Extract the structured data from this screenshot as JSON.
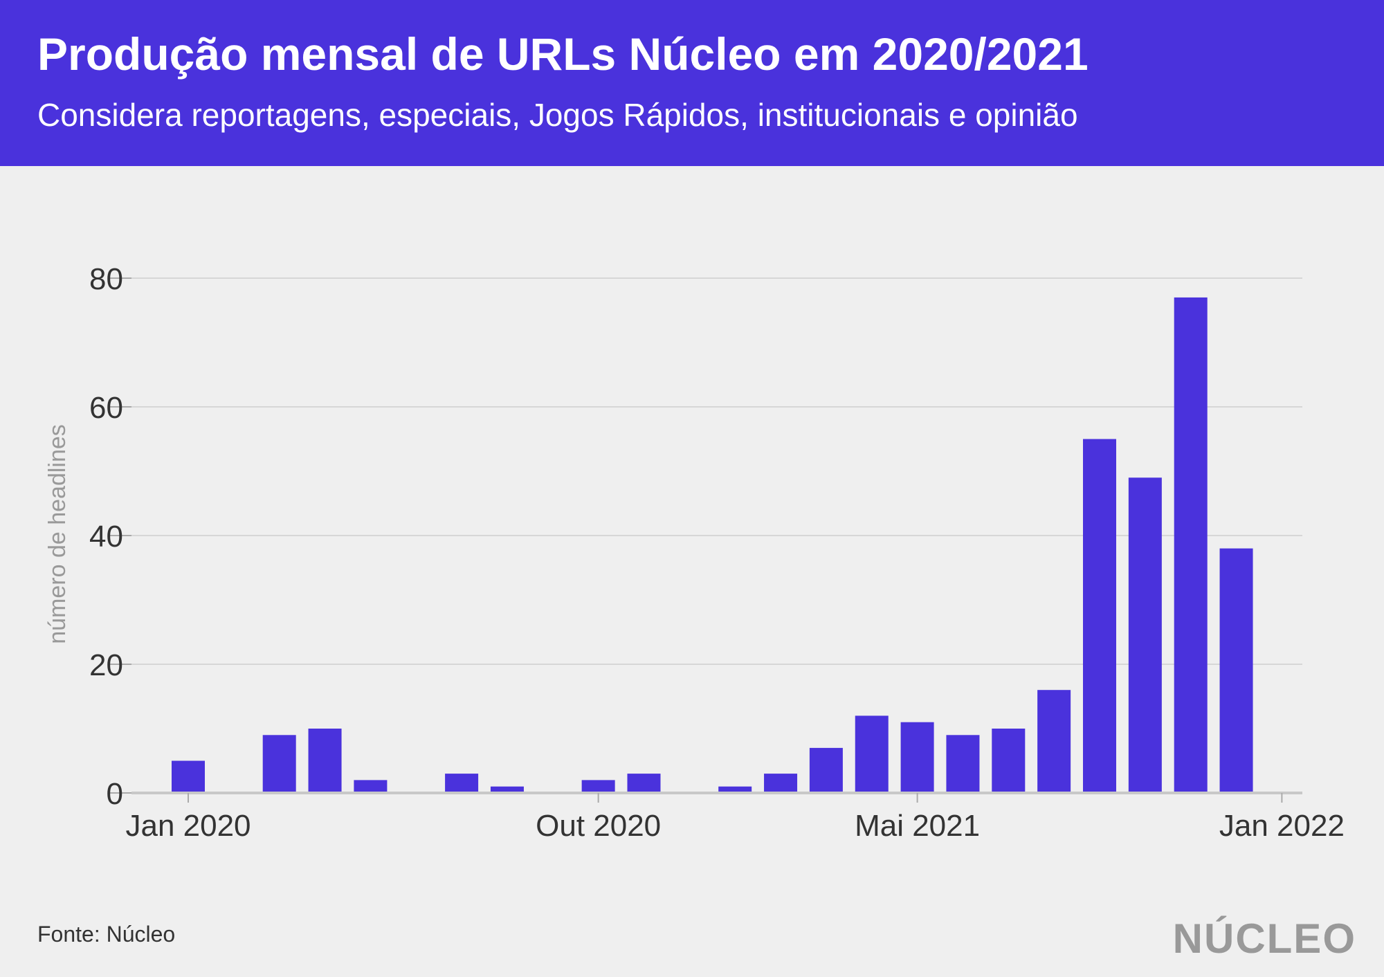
{
  "header": {
    "title": "Produção mensal de URLs Núcleo em 2020/2021",
    "subtitle": "Considera reportagens, especiais, Jogos Rápidos, institucionais e opinião"
  },
  "footer": {
    "source": "Fonte: Núcleo",
    "logo_text": "NÚCLEO"
  },
  "colors": {
    "header_bg": "#4a32dc",
    "bar": "#4a32dc",
    "background": "#efefef",
    "grid": "#d6d6d6"
  },
  "chart_data": {
    "type": "bar",
    "title": "Produção mensal de URLs Núcleo em 2020/2021",
    "subtitle": "Considera reportagens, especiais, Jogos Rápidos, institucionais e opinião",
    "xlabel": "",
    "ylabel": "número de headlines",
    "ylim": [
      0,
      80
    ],
    "yticks": [
      0,
      20,
      40,
      60,
      80
    ],
    "xticks": [
      {
        "label": "Jan 2020",
        "date": "2020-01"
      },
      {
        "label": "Out 2020",
        "date": "2020-10"
      },
      {
        "label": "Mai 2021",
        "date": "2021-05"
      },
      {
        "label": "Jan 2022",
        "date": "2022-01"
      }
    ],
    "grid": true,
    "x": [
      "2020-01",
      "2020-02",
      "2020-03",
      "2020-04",
      "2020-05",
      "2020-06",
      "2020-07",
      "2020-08",
      "2020-09",
      "2020-10",
      "2020-11",
      "2020-12",
      "2021-01",
      "2021-02",
      "2021-03",
      "2021-04",
      "2021-05",
      "2021-06",
      "2021-07",
      "2021-08",
      "2021-09",
      "2021-10",
      "2021-11",
      "2021-12"
    ],
    "values": [
      5,
      0,
      9,
      10,
      2,
      0,
      3,
      1,
      0,
      2,
      3,
      0,
      1,
      3,
      7,
      12,
      11,
      9,
      10,
      16,
      55,
      49,
      77,
      38
    ]
  }
}
